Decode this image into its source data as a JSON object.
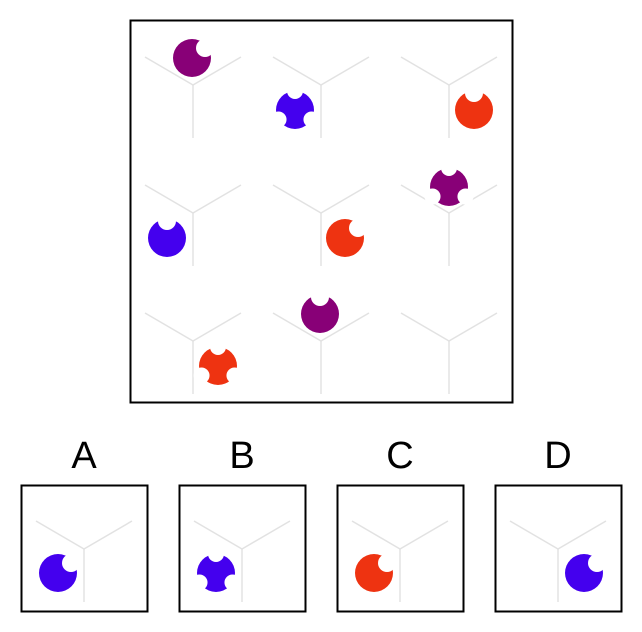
{
  "options": [
    {
      "label": "A"
    },
    {
      "label": "B"
    },
    {
      "label": "C"
    },
    {
      "label": "D"
    }
  ]
}
